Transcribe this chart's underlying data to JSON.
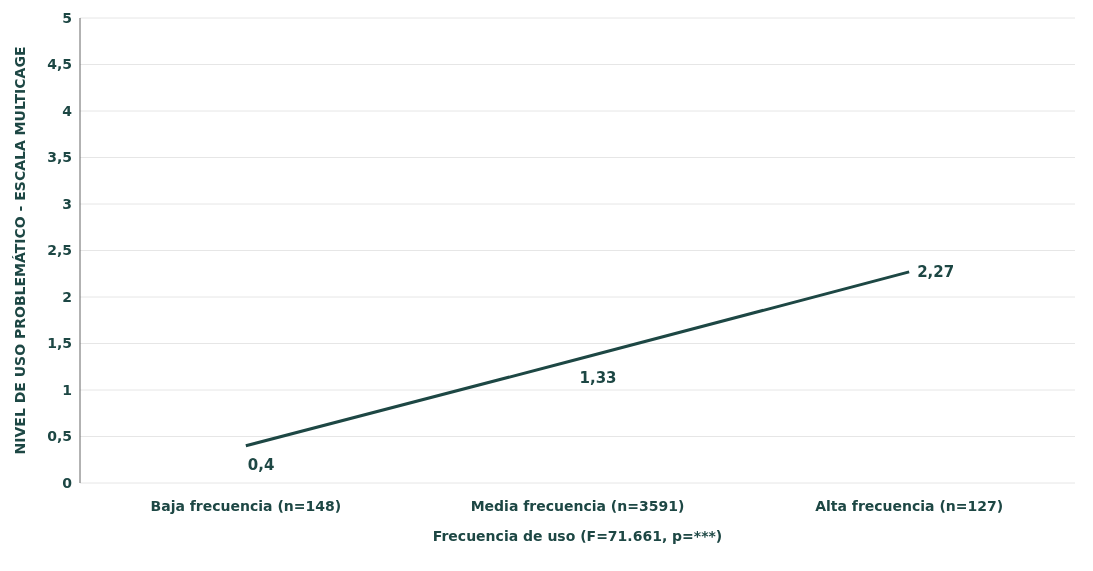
{
  "chart_data": {
    "type": "line",
    "xlabel": "Frecuencia de uso  (F=71.661, p=***)",
    "ylabel": "NIVEL DE USO PROBLEMÁTICO - ESCALA MULTICAGE",
    "categories": [
      "Baja frecuencia (n=148)",
      "Media frecuencia (n=3591)",
      "Alta frecuencia (n=127)"
    ],
    "series": [
      {
        "color": "#1d4744",
        "values": [
          0.4,
          1.33,
          2.27
        ],
        "value_labels": [
          "0,4",
          "1,33",
          "2,27"
        ]
      }
    ],
    "ylim": [
      0,
      5
    ],
    "yticks": [
      0,
      {
        "value": 0.5,
        "label": "0,5"
      },
      1,
      {
        "value": 1.5,
        "label": "1,5"
      },
      2,
      {
        "value": 2.5,
        "label": "2,5"
      },
      3,
      {
        "value": 3.5,
        "label": "3,5"
      },
      4,
      {
        "value": 4.5,
        "label": "4,5"
      },
      5
    ],
    "grid": "y",
    "marker": "none",
    "line_style": "solid"
  }
}
